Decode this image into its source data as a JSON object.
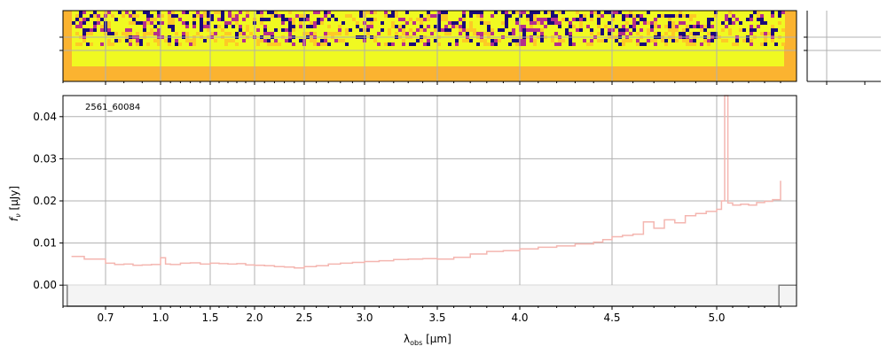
{
  "figure": {
    "id_label": "2561_60084",
    "ylabel": "f_ν [μJy]",
    "xlabel": "λ_obs [μm]",
    "colors": {
      "spectrum": "#f4b6b0",
      "model": "#7f7f7f",
      "grid": "#b0b0b0",
      "image_bg": "#fbb330",
      "image_fill": "#f0f921",
      "image_low": "#1a0a7a",
      "image_mid": "#b52f8c"
    }
  },
  "chart_data": [
    {
      "type": "heatmap",
      "name": "2d-spectrum",
      "colormap": "plasma",
      "x_ticks": [
        0.7,
        1.0,
        1.5,
        2.0,
        2.5,
        3.0,
        3.5,
        4.0,
        4.5,
        5.0
      ],
      "grid": true
    },
    {
      "type": "line",
      "name": "1d-spectrum",
      "title": "",
      "xlabel": "λ_obs [μm]",
      "ylabel": "f_ν [μJy]",
      "label": "2561_60084",
      "xlim": [
        0.6,
        5.5
      ],
      "ylim": [
        -0.005,
        0.045
      ],
      "x_ticks": [
        0.7,
        1.0,
        1.5,
        2.0,
        2.5,
        3.0,
        3.5,
        4.0,
        4.5,
        5.0
      ],
      "x_tick_labels": [
        "0.7",
        "1.0",
        "1.5",
        "2.0",
        "2.5",
        "3.0",
        "3.5",
        "4.0",
        "4.5",
        "5.0"
      ],
      "y_ticks": [
        0.0,
        0.01,
        0.02,
        0.03,
        0.04
      ],
      "y_tick_labels": [
        "0.00",
        "0.01",
        "0.02",
        "0.03",
        "0.04"
      ],
      "grid": true,
      "series": [
        {
          "role": "spectrum",
          "x": [
            0.62,
            0.65,
            0.7,
            0.75,
            0.8,
            0.85,
            0.9,
            0.95,
            1.0,
            1.05,
            1.1,
            1.2,
            1.3,
            1.4,
            1.5,
            1.6,
            1.7,
            1.8,
            1.9,
            2.0,
            2.1,
            2.2,
            2.3,
            2.4,
            2.5,
            2.6,
            2.7,
            2.8,
            2.9,
            3.0,
            3.1,
            3.2,
            3.3,
            3.4,
            3.5,
            3.6,
            3.7,
            3.8,
            3.9,
            4.0,
            4.1,
            4.2,
            4.3,
            4.4,
            4.45,
            4.5,
            4.55,
            4.6,
            4.65,
            4.7,
            4.75,
            4.8,
            4.85,
            4.9,
            4.95,
            5.0,
            5.03,
            5.05,
            5.07,
            5.1,
            5.15,
            5.2,
            5.25,
            5.3,
            5.35,
            5.4
          ],
          "y": [
            0.0068,
            0.0062,
            0.0052,
            0.0049,
            0.005,
            0.0047,
            0.0048,
            0.0049,
            0.0065,
            0.005,
            0.0049,
            0.0052,
            0.0053,
            0.005,
            0.0052,
            0.0051,
            0.005,
            0.0051,
            0.0048,
            0.0047,
            0.0046,
            0.0044,
            0.0043,
            0.0041,
            0.0044,
            0.0046,
            0.005,
            0.0052,
            0.0054,
            0.0056,
            0.0058,
            0.0061,
            0.0062,
            0.0063,
            0.0062,
            0.0066,
            0.0074,
            0.008,
            0.0082,
            0.0086,
            0.009,
            0.0093,
            0.0098,
            0.0102,
            0.0108,
            0.0115,
            0.0118,
            0.0121,
            0.015,
            0.0135,
            0.0155,
            0.0148,
            0.0165,
            0.017,
            0.0175,
            0.018,
            0.02,
            0.045,
            0.0195,
            0.019,
            0.0192,
            0.019,
            0.0196,
            0.0199,
            0.0203,
            0.0248
          ]
        },
        {
          "role": "model",
          "x": [
            0.6,
            0.61,
            0.61,
            5.39,
            5.39,
            5.5
          ],
          "y": [
            0.0,
            0.0,
            -0.005,
            -0.005,
            0.0,
            0.0
          ]
        }
      ]
    }
  ]
}
